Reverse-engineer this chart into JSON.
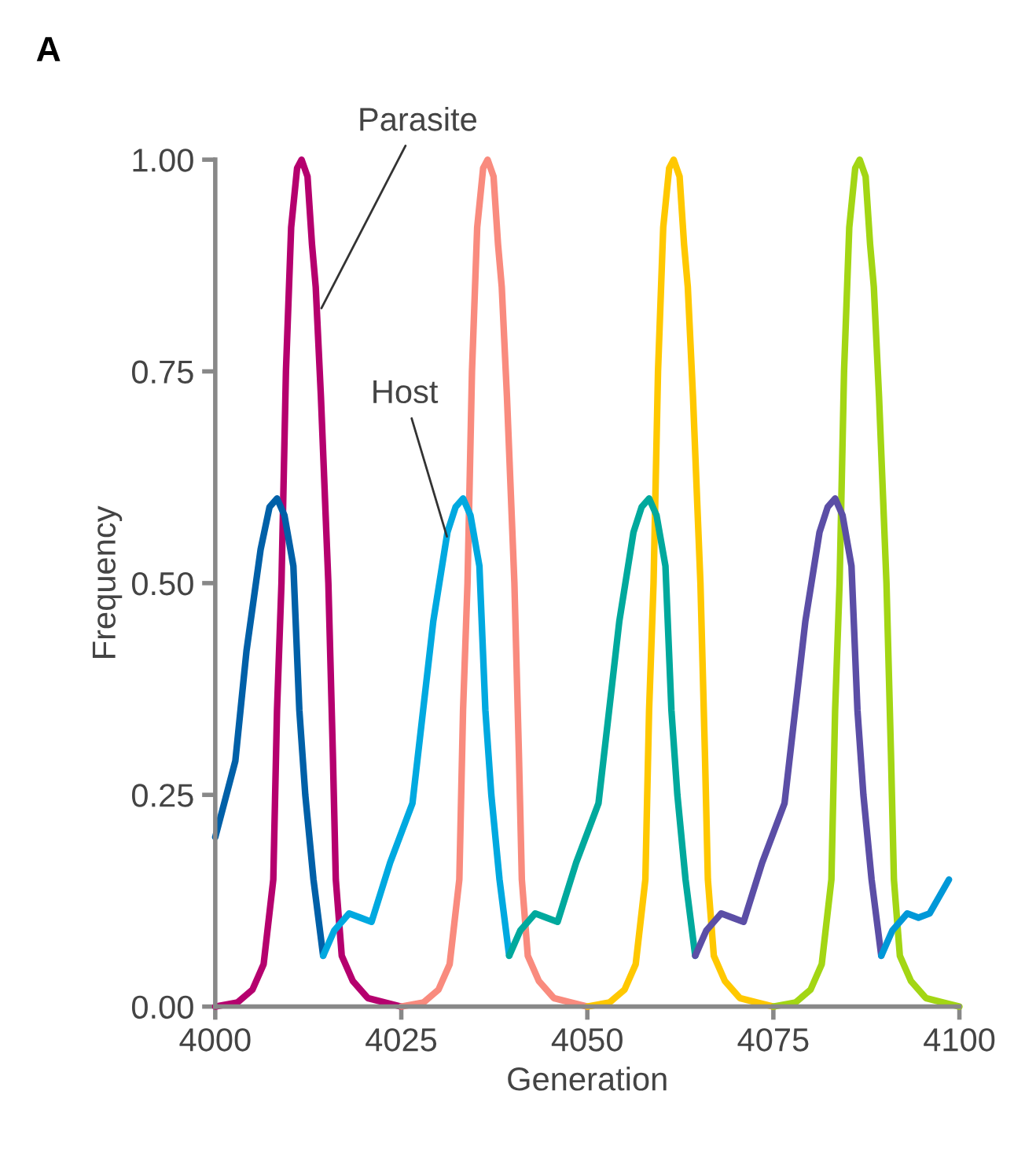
{
  "chart_data": {
    "type": "line",
    "xlabel": "Generation",
    "ylabel": "Frequency",
    "xlim": [
      4000,
      4100
    ],
    "xticks": [
      4000,
      4025,
      4050,
      4075,
      4100
    ],
    "ylim": [
      0,
      1
    ],
    "yticks": [
      {
        "value": 0,
        "label": "0.00"
      },
      {
        "value": 0.25,
        "label": "0.25"
      },
      {
        "value": 0.5,
        "label": "0.50"
      },
      {
        "value": 0.75,
        "label": "0.75"
      },
      {
        "value": 1,
        "label": "1.00"
      }
    ],
    "grid": false,
    "legend": false,
    "marker": "none",
    "line_style": "solid",
    "annotations": [
      "A",
      {
        "text": "Parasite",
        "x": 4014,
        "y": 0.82
      },
      {
        "text": "Host",
        "x": 4031.3,
        "y": 0.55
      }
    ],
    "series": [
      {
        "color": "#b5006e",
        "x": [
          4000,
          4003,
          4005,
          4006.5,
          4007.8,
          4008.3,
          4008.9,
          4009.5,
          4010.2,
          4011,
          4011.6,
          4012.4,
          4013,
          4013.5,
          4014.2,
          4015.2,
          4015.8,
          4016.2,
          4017,
          4018.5,
          4020.5,
          4025
        ],
        "values": [
          0,
          0.005,
          0.02,
          0.05,
          0.15,
          0.35,
          0.5,
          0.75,
          0.92,
          0.99,
          1.0,
          0.98,
          0.9,
          0.85,
          0.72,
          0.5,
          0.3,
          0.15,
          0.06,
          0.03,
          0.01,
          0
        ]
      },
      {
        "color": "#f98b7e",
        "x": [
          4025,
          4028,
          4030,
          4031.5,
          4032.8,
          4033.3,
          4033.9,
          4034.5,
          4035.2,
          4036,
          4036.6,
          4037.4,
          4038,
          4038.5,
          4039.2,
          4040.2,
          4040.8,
          4041.2,
          4042,
          4043.5,
          4045.5,
          4050
        ],
        "values": [
          0,
          0.005,
          0.02,
          0.05,
          0.15,
          0.35,
          0.5,
          0.75,
          0.92,
          0.99,
          1.0,
          0.98,
          0.9,
          0.85,
          0.72,
          0.5,
          0.3,
          0.15,
          0.06,
          0.03,
          0.01,
          0
        ]
      },
      {
        "color": "#ffc800",
        "x": [
          4050,
          4053,
          4055,
          4056.5,
          4057.8,
          4058.3,
          4058.9,
          4059.5,
          4060.2,
          4061,
          4061.6,
          4062.4,
          4063,
          4063.5,
          4064.2,
          4065.2,
          4065.8,
          4066.2,
          4067,
          4068.5,
          4070.5,
          4075
        ],
        "values": [
          0,
          0.005,
          0.02,
          0.05,
          0.15,
          0.35,
          0.5,
          0.75,
          0.92,
          0.99,
          1.0,
          0.98,
          0.9,
          0.85,
          0.72,
          0.5,
          0.3,
          0.15,
          0.06,
          0.03,
          0.01,
          0
        ]
      },
      {
        "color": "#a3d614",
        "x": [
          4075,
          4078,
          4080,
          4081.5,
          4082.8,
          4083.3,
          4083.9,
          4084.5,
          4085.2,
          4086,
          4086.6,
          4087.4,
          4088,
          4088.5,
          4089.2,
          4090.2,
          4090.8,
          4091.2,
          4092,
          4093.5,
          4095.5,
          4100
        ],
        "values": [
          0,
          0.005,
          0.02,
          0.05,
          0.15,
          0.35,
          0.5,
          0.75,
          0.92,
          0.99,
          1.0,
          0.98,
          0.9,
          0.85,
          0.72,
          0.5,
          0.3,
          0.15,
          0.06,
          0.03,
          0.01,
          0
        ]
      },
      {
        "color": "#0060a8",
        "x": [
          4000,
          4002.7,
          4004.2,
          4006.1,
          4007.3,
          4008.3,
          4009.3,
          4010.5,
          4011.3,
          4012.1,
          4013.2,
          4014.5
        ],
        "values": [
          0.2,
          0.29,
          0.42,
          0.54,
          0.59,
          0.6,
          0.58,
          0.52,
          0.35,
          0.25,
          0.15,
          0.06
        ]
      },
      {
        "color": "#00a9e0",
        "x": [
          4014.5,
          4016,
          4018,
          4019.5,
          4021,
          4023.5,
          4026.5,
          4029.3,
          4031.2,
          4032.3,
          4033.3,
          4034.3,
          4035.5,
          4036.3,
          4037.1,
          4038.2,
          4039.5
        ],
        "values": [
          0.06,
          0.09,
          0.11,
          0.105,
          0.1,
          0.17,
          0.24,
          0.455,
          0.56,
          0.59,
          0.6,
          0.58,
          0.52,
          0.35,
          0.25,
          0.15,
          0.06
        ]
      },
      {
        "color": "#00a99d",
        "x": [
          4039.5,
          4041,
          4043,
          4044.5,
          4046,
          4048.5,
          4051.5,
          4054.3,
          4056.2,
          4057.3,
          4058.3,
          4059.3,
          4060.5,
          4061.3,
          4062.1,
          4063.2,
          4064.5
        ],
        "values": [
          0.06,
          0.09,
          0.11,
          0.105,
          0.1,
          0.17,
          0.24,
          0.455,
          0.56,
          0.59,
          0.6,
          0.58,
          0.52,
          0.35,
          0.25,
          0.15,
          0.06
        ]
      },
      {
        "color": "#5b4ea6",
        "x": [
          4064.5,
          4066,
          4068,
          4069.5,
          4071,
          4073.5,
          4076.5,
          4079.3,
          4081.2,
          4082.3,
          4083.3,
          4084.3,
          4085.5,
          4086.3,
          4087.1,
          4088.2,
          4089.5
        ],
        "values": [
          0.06,
          0.09,
          0.11,
          0.105,
          0.1,
          0.17,
          0.24,
          0.455,
          0.56,
          0.59,
          0.6,
          0.58,
          0.52,
          0.35,
          0.25,
          0.15,
          0.06
        ]
      },
      {
        "color": "#0098d8",
        "x": [
          4089.5,
          4091,
          4093,
          4094.5,
          4096,
          4098.6
        ],
        "values": [
          0.06,
          0.09,
          0.11,
          0.105,
          0.11,
          0.15
        ]
      }
    ]
  }
}
